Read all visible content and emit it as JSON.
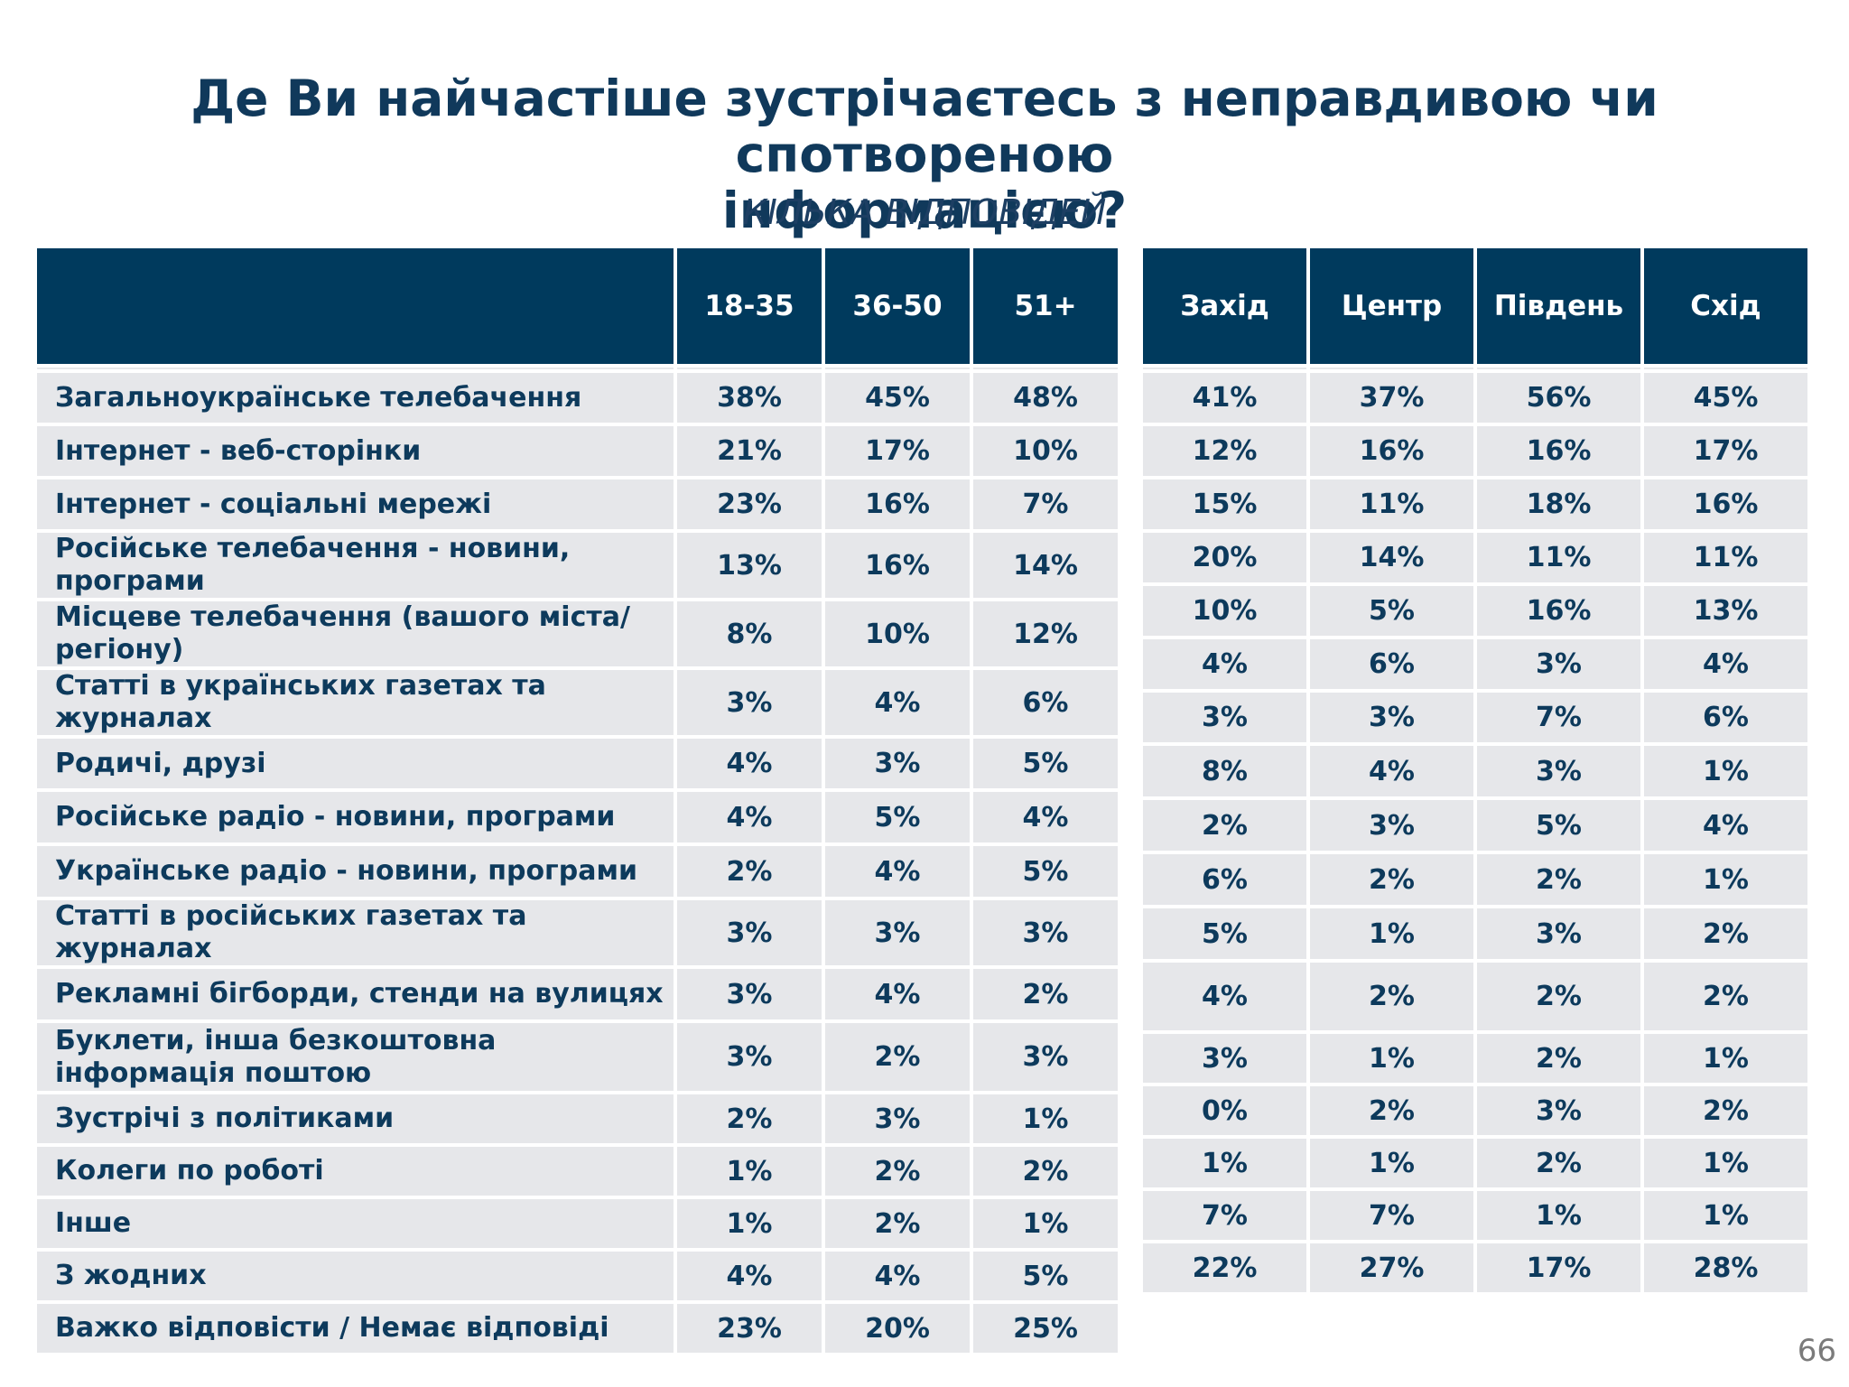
{
  "title_line1": "Де Ви найчастіше зустрічаєтесь з неправдивою чи спотвореною",
  "title_line2": "інформацією?",
  "subtitle": "КІЛЬКА ВІДПОВІДЕЙ",
  "page_number": "66",
  "colors": {
    "header_bg": "#003a5d",
    "row_bg": "#e6e7ea",
    "text": "#0d3a5c"
  },
  "chart_data": {
    "type": "table",
    "title": "Де Ви найчастіше зустрічаєтесь з неправдивою чи спотвореною інформацією?",
    "subtitle": "КІЛЬКА ВІДПОВІДЕЙ",
    "age_columns": [
      "18-35",
      "36-50",
      "51+"
    ],
    "region_columns": [
      "Захід",
      "Центр",
      "Південь",
      "Схід"
    ],
    "rows": [
      {
        "label": "Загальноукраїнське телебачення",
        "age": [
          "38%",
          "45%",
          "48%"
        ],
        "region": [
          "41%",
          "37%",
          "56%",
          "45%"
        ]
      },
      {
        "label": "Інтернет - веб-сторінки",
        "age": [
          "21%",
          "17%",
          "10%"
        ],
        "region": [
          "12%",
          "16%",
          "16%",
          "17%"
        ]
      },
      {
        "label": "Інтернет - соціальні мережі",
        "age": [
          "23%",
          "16%",
          "7%"
        ],
        "region": [
          "15%",
          "11%",
          "18%",
          "16%"
        ]
      },
      {
        "label": "Російське телебачення - новини, програми",
        "age": [
          "13%",
          "16%",
          "14%"
        ],
        "region": [
          "20%",
          "14%",
          "11%",
          "11%"
        ]
      },
      {
        "label": "Місцеве телебачення (вашого міста/регіону)",
        "age": [
          "8%",
          "10%",
          "12%"
        ],
        "region": [
          "10%",
          "5%",
          "16%",
          "13%"
        ]
      },
      {
        "label": "Статті в українських газетах та журналах",
        "age": [
          "3%",
          "4%",
          "6%"
        ],
        "region": [
          "4%",
          "6%",
          "3%",
          "4%"
        ]
      },
      {
        "label": "Родичі, друзі",
        "age": [
          "4%",
          "3%",
          "5%"
        ],
        "region": [
          "3%",
          "3%",
          "7%",
          "6%"
        ]
      },
      {
        "label": "Російське радіо  - новини, програми",
        "age": [
          "4%",
          "5%",
          "4%"
        ],
        "region": [
          "8%",
          "4%",
          "3%",
          "1%"
        ]
      },
      {
        "label": "Українське радіо  - новини, програми",
        "age": [
          "2%",
          "4%",
          "5%"
        ],
        "region": [
          "2%",
          "3%",
          "5%",
          "4%"
        ]
      },
      {
        "label": "Статті в російських газетах та журналах",
        "age": [
          "3%",
          "3%",
          "3%"
        ],
        "region": [
          "6%",
          "2%",
          "2%",
          "1%"
        ]
      },
      {
        "label": "Рекламні бігборди, стенди на вулицях",
        "age": [
          "3%",
          "4%",
          "2%"
        ],
        "region": [
          "5%",
          "1%",
          "3%",
          "2%"
        ]
      },
      {
        "label": "Буклети, інша безкоштовна інформація поштою",
        "age": [
          "3%",
          "2%",
          "3%"
        ],
        "region": [
          "4%",
          "2%",
          "2%",
          "2%"
        ]
      },
      {
        "label": "Зустрічі з політиками",
        "age": [
          "2%",
          "3%",
          "1%"
        ],
        "region": [
          "3%",
          "1%",
          "2%",
          "1%"
        ]
      },
      {
        "label": "Колеги по роботі",
        "age": [
          "1%",
          "2%",
          "2%"
        ],
        "region": [
          "0%",
          "2%",
          "3%",
          "2%"
        ]
      },
      {
        "label": "Інше",
        "age": [
          "1%",
          "2%",
          "1%"
        ],
        "region": [
          "1%",
          "1%",
          "2%",
          "1%"
        ]
      },
      {
        "label": "З жодних",
        "age": [
          "4%",
          "4%",
          "5%"
        ],
        "region": [
          "7%",
          "7%",
          "1%",
          "1%"
        ]
      },
      {
        "label": "Важко відповісти / Немає відповіді",
        "age": [
          "23%",
          "20%",
          "25%"
        ],
        "region": [
          "22%",
          "27%",
          "17%",
          "28%"
        ]
      }
    ]
  }
}
